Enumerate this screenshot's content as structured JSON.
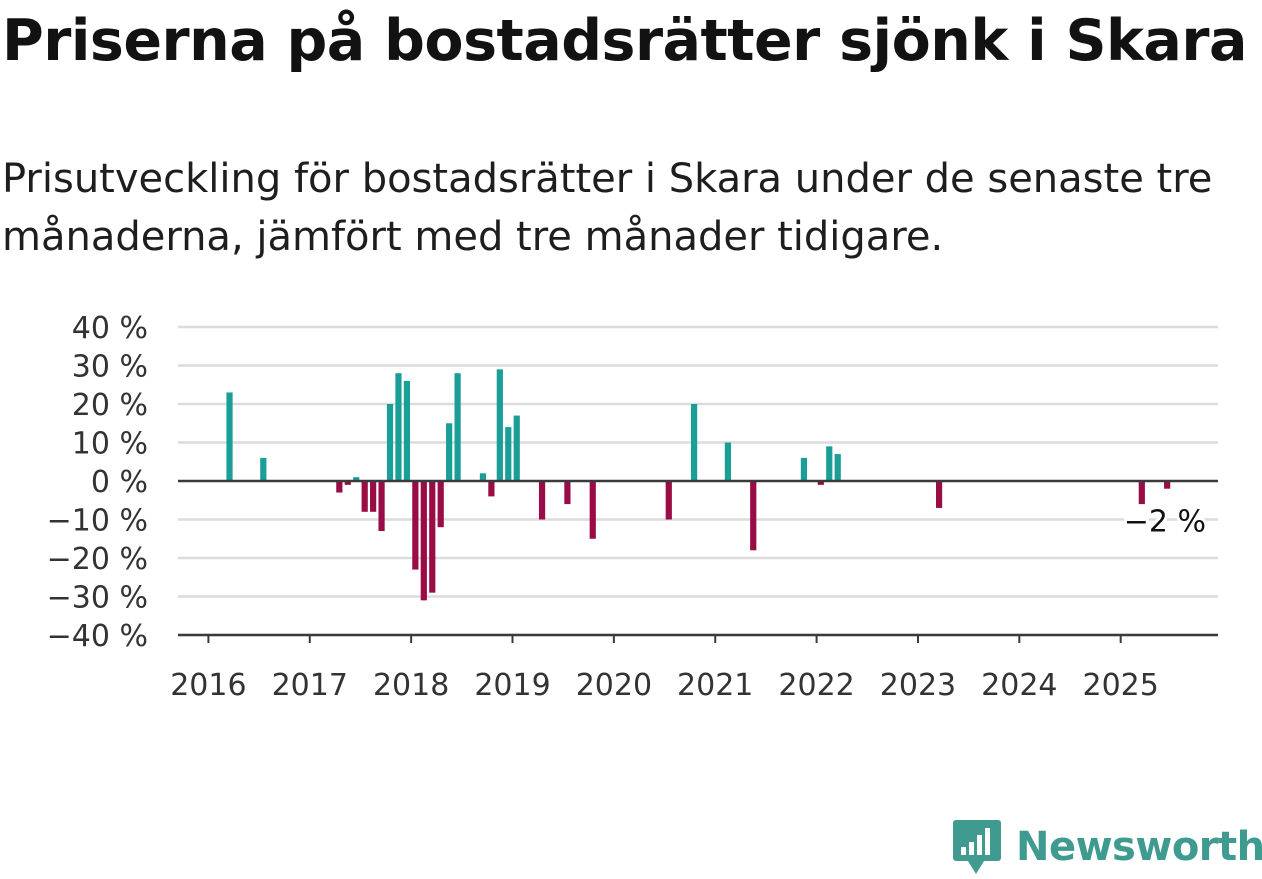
{
  "title": "Priserna på bostadsrätter sjönk i Skara",
  "subtitle": "Prisutveckling för bostadsrätter i Skara under de senaste tre månaderna, jämfört med tre månader tidigare.",
  "colors": {
    "positive": "#1a9e98",
    "negative": "#9a0c45",
    "grid": "#dcdcdc",
    "axis": "#3a3a3a"
  },
  "logo": {
    "name": "Newsworthy",
    "icon": "bar-chart-speech-bubble-icon"
  },
  "chart_data": {
    "type": "bar",
    "ylim": [
      -40,
      40
    ],
    "yticks": [
      40,
      30,
      20,
      10,
      0,
      -10,
      -20,
      -30,
      -40
    ],
    "ytick_labels": [
      "40 %",
      "30 %",
      "20 %",
      "10 %",
      "0 %",
      "−10 %",
      "−20 %",
      "−30 %",
      "−40 %"
    ],
    "xlim": [
      2015.7,
      2025.96
    ],
    "xticks": [
      "2016",
      "2017",
      "2018",
      "2019",
      "2020",
      "2021",
      "2022",
      "2023",
      "2024",
      "2025"
    ],
    "grid": true,
    "annotation": {
      "text": "−2 %",
      "x": "2025-06",
      "y": -2
    },
    "series": [
      {
        "x": [
          "2016-03",
          "2016-07",
          "2017-04",
          "2017-05",
          "2017-06",
          "2017-07",
          "2017-08",
          "2017-09",
          "2017-10",
          "2017-11",
          "2017-12",
          "2018-01",
          "2018-02",
          "2018-03",
          "2018-04",
          "2018-05",
          "2018-06",
          "2018-09",
          "2018-10",
          "2018-11",
          "2018-12",
          "2019-01",
          "2019-04",
          "2019-07",
          "2019-10",
          "2020-07",
          "2020-10",
          "2021-02",
          "2021-05",
          "2021-11",
          "2022-01",
          "2022-02",
          "2022-03",
          "2023-03",
          "2025-03",
          "2025-06"
        ],
        "values": [
          23,
          6,
          -3,
          -1,
          1,
          -8,
          -8,
          -13,
          20,
          28,
          26,
          -23,
          -31,
          -29,
          -12,
          15,
          28,
          2,
          -4,
          29,
          14,
          17,
          -10,
          -6,
          -15,
          -10,
          20,
          10,
          -18,
          6,
          -1,
          9,
          7,
          -7,
          -6,
          -2
        ]
      }
    ]
  }
}
